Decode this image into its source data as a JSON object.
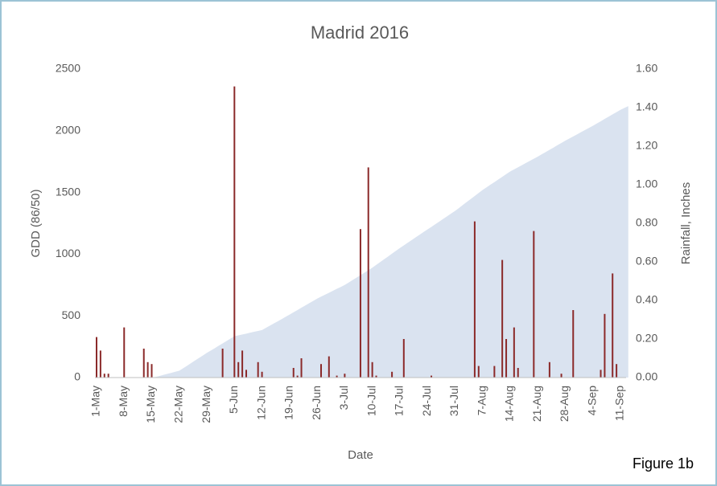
{
  "chart_data": {
    "type": "combo",
    "title": "Madrid 2016",
    "xlabel": "Date",
    "ylabel": "GDD (86/50)",
    "y2label": "Rainfall, Inches",
    "annotation": "Figure 1b",
    "categories": [
      "1-May",
      null,
      null,
      null,
      null,
      null,
      null,
      "8-May",
      null,
      null,
      null,
      null,
      null,
      null,
      "15-May",
      null,
      null,
      null,
      null,
      null,
      null,
      "22-May",
      null,
      null,
      null,
      null,
      null,
      null,
      "29-May",
      null,
      null,
      null,
      null,
      null,
      null,
      "5-Jun",
      null,
      null,
      null,
      null,
      null,
      null,
      "12-Jun",
      null,
      null,
      null,
      null,
      null,
      null,
      "19-Jun",
      null,
      null,
      null,
      null,
      null,
      null,
      "26-Jun",
      null,
      null,
      null,
      null,
      null,
      null,
      "3-Jul",
      null,
      null,
      null,
      null,
      null,
      null,
      "10-Jul",
      null,
      null,
      null,
      null,
      null,
      null,
      "17-Jul",
      null,
      null,
      null,
      null,
      null,
      null,
      "24-Jul",
      null,
      null,
      null,
      null,
      null,
      null,
      "31-Jul",
      null,
      null,
      null,
      null,
      null,
      null,
      "7-Aug",
      null,
      null,
      null,
      null,
      null,
      null,
      "14-Aug",
      null,
      null,
      null,
      null,
      null,
      null,
      "21-Aug",
      null,
      null,
      null,
      null,
      null,
      null,
      "28-Aug",
      null,
      null,
      null,
      null,
      null,
      null,
      "4-Sep",
      null,
      null,
      null,
      null,
      null,
      null,
      "11-Sep",
      null,
      null
    ],
    "series": [
      {
        "type": "area",
        "color": "#dae3f0",
        "values": [
          0,
          0,
          0,
          0,
          0,
          0,
          0,
          0,
          0,
          0,
          0,
          0,
          0,
          0,
          0,
          5,
          13,
          22,
          30,
          38,
          47,
          55,
          76,
          96,
          117,
          138,
          159,
          179,
          200,
          219,
          238,
          258,
          277,
          296,
          316,
          335,
          342,
          349,
          356,
          364,
          371,
          378,
          385,
          403,
          421,
          439,
          456,
          474,
          492,
          510,
          529,
          547,
          566,
          584,
          603,
          621,
          640,
          656,
          671,
          687,
          703,
          719,
          734,
          750,
          770,
          790,
          810,
          830,
          850,
          870,
          890,
          913,
          936,
          959,
          981,
          1004,
          1027,
          1050,
          1071,
          1093,
          1114,
          1136,
          1157,
          1179,
          1200,
          1221,
          1243,
          1264,
          1286,
          1307,
          1329,
          1350,
          1374,
          1399,
          1423,
          1447,
          1471,
          1496,
          1520,
          1541,
          1563,
          1584,
          1606,
          1627,
          1649,
          1670,
          1687,
          1704,
          1721,
          1739,
          1756,
          1773,
          1790,
          1809,
          1827,
          1846,
          1864,
          1883,
          1901,
          1920,
          1937,
          1954,
          1971,
          1989,
          2006,
          2023,
          2040,
          2059,
          2077,
          2096,
          2114,
          2133,
          2151,
          2170,
          2185,
          2200
        ]
      },
      {
        "type": "bar",
        "axis": "y2",
        "color": "#8b2a2a",
        "values": [
          0.21,
          0.14,
          0.02,
          0.02,
          0,
          0,
          0,
          0.26,
          0,
          0,
          0,
          0,
          0.15,
          0.08,
          0.07,
          0,
          0,
          0,
          0,
          0,
          0,
          0,
          0,
          0,
          0,
          0,
          0,
          0,
          0,
          0,
          0,
          0,
          0.15,
          0,
          0,
          1.51,
          0.08,
          0.14,
          0.04,
          0,
          0,
          0.08,
          0.03,
          0,
          0,
          0,
          0,
          0,
          0,
          0,
          0.05,
          0.01,
          0.1,
          0,
          0,
          0,
          0,
          0.07,
          0,
          0.11,
          0,
          0.01,
          0,
          0.02,
          0,
          0,
          0,
          0.77,
          0,
          1.09,
          0.08,
          0.01,
          0,
          0,
          0,
          0.03,
          0,
          0,
          0.2,
          0,
          0,
          0,
          0,
          0,
          0,
          0.01,
          0,
          0,
          0,
          0,
          0,
          0,
          0,
          0,
          0,
          0,
          0.81,
          0.06,
          0,
          0,
          0,
          0.06,
          0,
          0.61,
          0.2,
          0,
          0.26,
          0.05,
          0,
          0,
          0,
          0.76,
          0,
          0,
          0,
          0.08,
          0,
          0,
          0.02,
          0,
          0,
          0.35,
          0,
          0,
          0,
          0,
          0,
          0,
          0.04,
          0.33,
          0,
          0.54,
          0.07,
          0,
          0,
          0
        ]
      }
    ],
    "ylim": [
      0,
      2500
    ],
    "yticks": [
      0,
      500,
      1000,
      1500,
      2000,
      2500
    ],
    "y2lim": [
      0,
      1.6
    ],
    "y2ticks": [
      {
        "value": 0,
        "label": "0.00"
      },
      {
        "value": 0.2,
        "label": "0.20"
      },
      {
        "value": 0.4,
        "label": "0.40"
      },
      {
        "value": 0.6,
        "label": "0.60"
      },
      {
        "value": 0.8,
        "label": "0.80"
      },
      {
        "value": 1.0,
        "label": "1.00"
      },
      {
        "value": 1.2,
        "label": "1.20"
      },
      {
        "value": 1.4,
        "label": "1.40"
      },
      {
        "value": 1.6,
        "label": "1.60"
      }
    ],
    "grid": false
  }
}
